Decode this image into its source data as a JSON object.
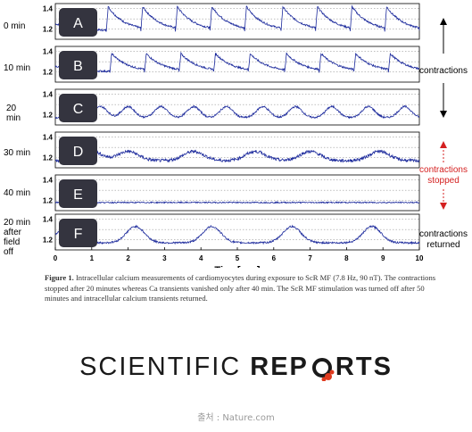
{
  "chart_data": {
    "type": "line",
    "xlabel": "Time[sec]",
    "xlim": [
      0,
      10
    ],
    "x_ticks": [
      "0",
      "1",
      "2",
      "3",
      "4",
      "5",
      "6",
      "7",
      "8",
      "9",
      "10"
    ],
    "ylim": [
      1.1,
      1.45
    ],
    "y_ticks": [
      "1.4",
      "1.2"
    ],
    "line_color": "#1c2a9c",
    "panels": [
      {
        "id": "A",
        "time": "0 min",
        "pattern": "sawtooth",
        "beat_times": [
          1.4,
          2.35,
          3.3,
          4.25,
          5.2,
          6.2,
          7.15,
          8.1,
          9.05,
          10.0
        ],
        "baseline": 1.18,
        "peak": 1.42
      },
      {
        "id": "B",
        "time": "10 min",
        "pattern": "sawtooth",
        "beat_times": [
          1.5,
          2.45,
          3.4,
          4.35,
          5.3,
          6.3,
          7.25,
          8.2,
          9.15
        ],
        "baseline": 1.2,
        "peak": 1.38
      },
      {
        "id": "C",
        "time": "20 min",
        "pattern": "small_waves",
        "peaks": [
          1.25,
          2.0,
          2.9,
          3.8,
          4.7,
          5.7,
          6.6,
          7.6,
          8.6,
          9.6
        ],
        "baseline": 1.17,
        "peak": 1.28
      },
      {
        "id": "D",
        "time": "30 min",
        "pattern": "noisy_waves",
        "peaks": [
          1.0,
          2.0,
          3.8,
          5.5,
          7.0,
          8.9
        ],
        "baseline": 1.17,
        "peak": 1.26
      },
      {
        "id": "E",
        "time": "40 min",
        "pattern": "flat",
        "baseline": 1.18,
        "peak": 1.2
      },
      {
        "id": "F",
        "time": "20 min after field off",
        "pattern": "slow_waves",
        "peaks": [
          0.3,
          2.2,
          4.3,
          6.5,
          8.7
        ],
        "baseline": 1.17,
        "peak": 1.33
      }
    ],
    "annotations": {
      "contractions": "contractions",
      "stopped_line1": "contractions",
      "stopped_line2": "stopped",
      "returned_line1": "contractions",
      "returned_line2": "returned"
    },
    "annotation_colors": {
      "contractions": "#000000",
      "stopped": "#d42020",
      "returned": "#000000"
    }
  },
  "caption": {
    "label": "Figure 1.",
    "text": "Intracellular calcium measurements of cardiomyocytes during exposure to ScR MF (7.8 Hz, 90 nT). The contractions stopped after 20 minutes whereas Ca transients vanished only after 40 min. The ScR MF stimulation was turned off after 50 minutes and intracellular calcium transients returned."
  },
  "logo": {
    "left": "SCIENTIFIC ",
    "right": "REP",
    "right2": "RTS"
  },
  "source": "출처 : Nature.com"
}
